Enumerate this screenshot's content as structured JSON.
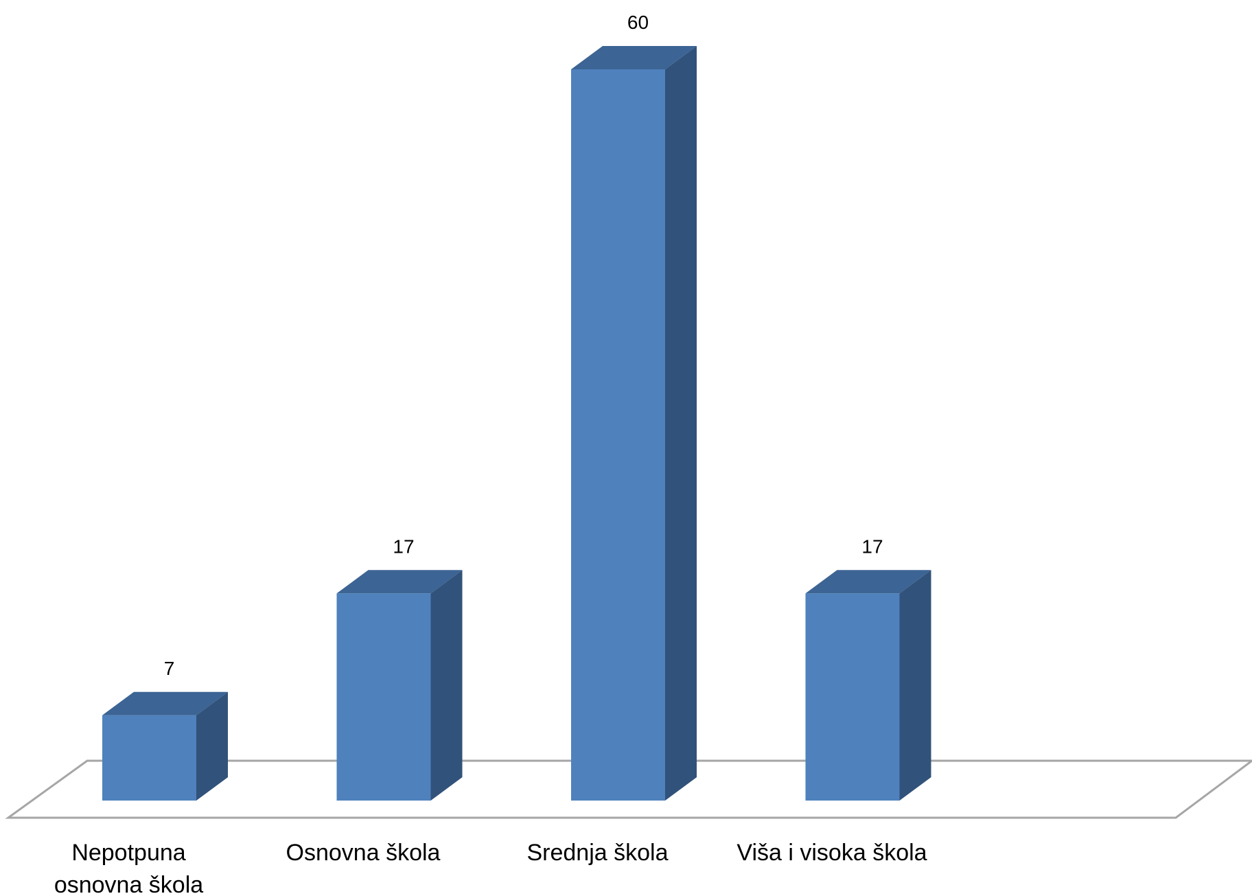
{
  "chart_data": {
    "type": "bar",
    "style": "3d-column",
    "categories": [
      "Nepotpuna osnovna škola",
      "Osnovna škola",
      "Srednja škola",
      "Viša i visoka škola"
    ],
    "category_lines": [
      [
        "Nepotpuna",
        "osnovna škola"
      ],
      [
        "Osnovna škola"
      ],
      [
        "Srednja škola"
      ],
      [
        "Viša i visoka škola"
      ]
    ],
    "values": [
      7,
      17,
      60,
      17
    ],
    "data_labels": [
      "7",
      "17",
      "60",
      "17"
    ],
    "title": "",
    "xlabel": "",
    "ylabel": "",
    "ylim": [
      0,
      60
    ],
    "grid": false,
    "legend": "none",
    "colors": {
      "front": "#4F81BD",
      "side": "#31527A",
      "top": "#3C6494",
      "floor": "#A6A6A6"
    }
  }
}
